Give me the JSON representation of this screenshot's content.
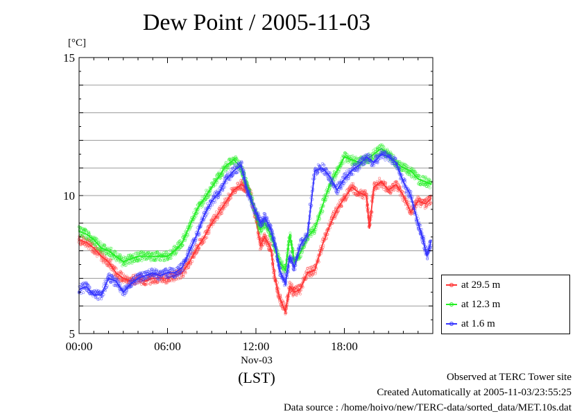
{
  "title": "Dew Point / 2005-11-03",
  "unit": "[°C]",
  "date_label": "Nov-03",
  "tz_label": "(LST)",
  "legend": [
    {
      "label": "at 29.5 m",
      "color": "#ff3333"
    },
    {
      "label": "at 12.3 m",
      "color": "#22ee22"
    },
    {
      "label": "at 1.6 m",
      "color": "#3333ff"
    }
  ],
  "footer": {
    "line1": "Observed at TERC Tower site",
    "line2": "Created Automatically at 2005-11-03/23:55:25",
    "line3": "Data source : /home/hoivo/new/TERC-data/sorted_data/MET.10s.dat"
  },
  "chart_data": {
    "type": "line",
    "title": "Dew Point / 2005-11-03",
    "xlabel": "(LST)",
    "ylabel": "[°C]",
    "x_unit": "hour",
    "xlim": [
      0,
      24
    ],
    "ylim": [
      5,
      15
    ],
    "x_ticks": [
      0,
      6,
      12,
      18
    ],
    "x_tick_labels": [
      "00:00",
      "06:00",
      "12:00",
      "18:00"
    ],
    "y_ticks": [
      5,
      10,
      15
    ],
    "y_tick_labels": [
      "5",
      "10",
      "15"
    ],
    "grid": "horizontal every 1 °C",
    "legend_position": "right, lower",
    "series": [
      {
        "name": "at 29.5 m",
        "color": "#ff3333",
        "x": [
          0,
          0.5,
          1,
          1.5,
          2,
          2.5,
          3,
          3.5,
          4,
          4.5,
          5,
          5.5,
          6,
          6.5,
          7,
          7.5,
          8,
          8.5,
          9,
          9.5,
          10,
          10.5,
          11,
          11.3,
          11.6,
          12,
          12.3,
          12.6,
          13,
          13.3,
          13.6,
          14,
          14.3,
          14.6,
          15,
          15.5,
          16,
          16.5,
          17,
          17.5,
          18,
          18.5,
          19,
          19.5,
          19.7,
          20,
          20.5,
          21,
          21.5,
          22,
          22.5,
          23,
          23.5,
          23.9
        ],
        "y": [
          8.4,
          8.3,
          8.1,
          7.8,
          7.6,
          7.2,
          7.0,
          6.9,
          7.0,
          6.9,
          7.0,
          7.0,
          7.0,
          7.1,
          7.2,
          7.6,
          8.1,
          8.5,
          9.0,
          9.4,
          9.8,
          10.2,
          10.4,
          10.3,
          10.1,
          9.2,
          8.2,
          8.5,
          8.1,
          7.0,
          6.3,
          5.8,
          6.7,
          6.5,
          6.6,
          7.2,
          7.3,
          8.2,
          8.9,
          9.5,
          9.9,
          10.3,
          10.1,
          10.0,
          8.8,
          10.3,
          10.5,
          10.2,
          10.4,
          10.0,
          9.4,
          9.8,
          9.7,
          9.9
        ]
      },
      {
        "name": "at 12.3 m",
        "color": "#22ee22",
        "x": [
          0,
          0.5,
          1,
          1.5,
          2,
          2.5,
          3,
          3.5,
          4,
          4.5,
          5,
          5.5,
          6,
          6.5,
          7,
          7.5,
          8,
          8.5,
          9,
          9.5,
          10,
          10.5,
          11,
          11.3,
          11.6,
          12,
          12.3,
          12.6,
          13,
          13.3,
          13.6,
          14,
          14.3,
          14.6,
          15,
          15.5,
          16,
          16.5,
          17,
          17.5,
          18,
          18.5,
          19,
          19.5,
          20,
          20.5,
          21,
          21.5,
          22,
          22.5,
          23,
          23.5,
          23.9
        ],
        "y": [
          8.7,
          8.6,
          8.4,
          8.1,
          8.0,
          7.8,
          7.6,
          7.7,
          7.8,
          7.8,
          7.8,
          7.8,
          7.8,
          8.0,
          8.3,
          8.9,
          9.5,
          9.9,
          10.3,
          10.7,
          11.1,
          11.3,
          11.0,
          10.5,
          10.1,
          9.3,
          8.8,
          9.0,
          8.6,
          8.1,
          7.6,
          7.3,
          8.6,
          7.6,
          7.9,
          8.5,
          8.8,
          9.6,
          10.4,
          10.9,
          11.4,
          11.3,
          11.2,
          11.3,
          11.5,
          11.7,
          11.5,
          11.2,
          11.0,
          10.9,
          10.6,
          10.5,
          10.4
        ]
      },
      {
        "name": "at 1.6 m",
        "color": "#3333ff",
        "x": [
          0,
          0.5,
          1,
          1.5,
          2,
          2.5,
          3,
          3.5,
          4,
          4.5,
          5,
          5.5,
          6,
          6.5,
          7,
          7.5,
          8,
          8.5,
          9,
          9.5,
          10,
          10.5,
          11,
          11.3,
          11.6,
          12,
          12.3,
          12.6,
          13,
          13.3,
          13.6,
          14,
          14.3,
          14.6,
          15,
          15.5,
          16,
          16.5,
          17,
          17.5,
          18,
          18.5,
          19,
          19.5,
          20,
          20.5,
          21,
          21.5,
          22,
          22.5,
          23,
          23.3,
          23.6,
          23.9
        ],
        "y": [
          6.6,
          6.7,
          6.4,
          6.4,
          7.0,
          6.9,
          6.5,
          6.8,
          7.0,
          7.1,
          7.2,
          7.1,
          7.2,
          7.2,
          7.4,
          8.0,
          8.6,
          9.3,
          9.8,
          10.1,
          10.6,
          10.9,
          11.1,
          10.4,
          9.9,
          9.4,
          9.0,
          9.2,
          8.8,
          8.2,
          7.3,
          6.8,
          7.8,
          7.4,
          8.2,
          8.6,
          10.9,
          11.0,
          10.7,
          10.2,
          10.6,
          10.9,
          11.1,
          11.4,
          11.2,
          11.5,
          11.4,
          11.2,
          10.5,
          10.0,
          9.0,
          8.5,
          7.8,
          8.4
        ]
      }
    ]
  }
}
